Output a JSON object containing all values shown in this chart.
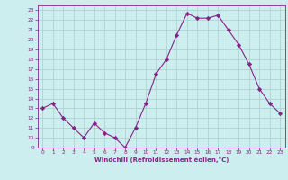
{
  "x": [
    0,
    1,
    2,
    3,
    4,
    5,
    6,
    7,
    8,
    9,
    10,
    11,
    12,
    13,
    14,
    15,
    16,
    17,
    18,
    19,
    20,
    21,
    22,
    23
  ],
  "y": [
    13,
    13.5,
    12,
    11,
    10,
    11.5,
    10.5,
    10,
    9,
    11,
    13.5,
    16.5,
    18,
    20.5,
    22.7,
    22.2,
    22.2,
    22.5,
    21,
    19.5,
    17.5,
    15,
    13.5,
    12.5
  ],
  "line_color": "#882288",
  "marker": "D",
  "marker_size": 2.2,
  "bg_color": "#cceeee",
  "grid_color": "#aacccc",
  "tick_color": "#882288",
  "label_color": "#882288",
  "xlabel": "Windchill (Refroidissement éolien,°C)",
  "ylim": [
    9,
    23.5
  ],
  "xlim": [
    -0.5,
    23.5
  ],
  "yticks": [
    9,
    10,
    11,
    12,
    13,
    14,
    15,
    16,
    17,
    18,
    19,
    20,
    21,
    22,
    23
  ],
  "xticks": [
    0,
    1,
    2,
    3,
    4,
    5,
    6,
    7,
    8,
    9,
    10,
    11,
    12,
    13,
    14,
    15,
    16,
    17,
    18,
    19,
    20,
    21,
    22,
    23
  ]
}
